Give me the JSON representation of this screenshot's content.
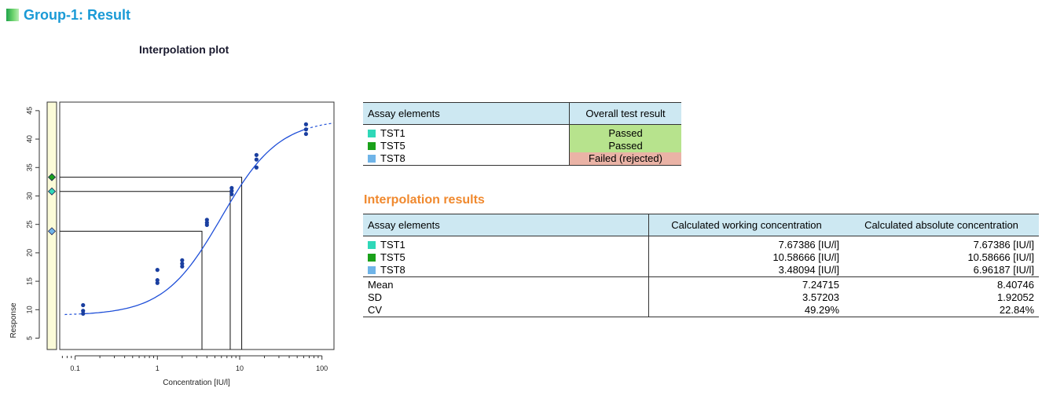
{
  "header": {
    "title": "Group-1: Result"
  },
  "plot_title": "Interpolation plot",
  "colors": {
    "TST1": "#2fd8b8",
    "TST5": "#1aa11a",
    "TST8": "#6fb4e8",
    "curve": "#1f4fd8",
    "points": "#1a3fa0"
  },
  "chart_data": {
    "type": "scatter",
    "xlabel": "Concentration [IU/l]",
    "ylabel": "Response",
    "x_scale": "log",
    "xlim": [
      0.065,
      140
    ],
    "ylim": [
      3,
      46.5
    ],
    "x_ticks": [
      "0.1",
      "1",
      "10",
      "100"
    ],
    "y_ticks": [
      "5",
      "10",
      "15",
      "20",
      "25",
      "30",
      "35",
      "40",
      "45"
    ],
    "curve": {
      "type": "4PL",
      "bottom": 9.0,
      "top": 43.5,
      "ec50": 6.0,
      "hill": 1.24,
      "x_range": [
        0.12,
        64
      ],
      "extrapolated": true
    },
    "points": {
      "x": [
        0.125,
        0.125,
        0.125,
        1,
        1,
        1,
        2,
        2,
        2,
        4,
        4,
        4,
        8,
        8,
        8,
        16,
        16,
        16,
        64,
        64,
        64
      ],
      "y": [
        10.8,
        9.8,
        9.3,
        17.0,
        15.2,
        14.7,
        18.7,
        18.1,
        17.6,
        25.8,
        25.3,
        24.9,
        31.4,
        30.9,
        30.3,
        37.2,
        36.4,
        35.0,
        42.6,
        41.7,
        40.9
      ]
    },
    "interpolation_lines": [
      {
        "x": 7.67386,
        "y": 30.8
      },
      {
        "x": 10.58666,
        "y": 33.3
      },
      {
        "x": 3.48094,
        "y": 23.8
      }
    ],
    "sample_markers": [
      {
        "name": "TST5",
        "y": 33.3
      },
      {
        "name": "TST1",
        "y": 30.8
      },
      {
        "name": "TST8",
        "y": 23.8
      }
    ]
  },
  "assay_table": {
    "headers": [
      "Assay elements",
      "Overall test result"
    ],
    "rows": [
      {
        "name": "TST1",
        "result": "Passed",
        "status": "passed"
      },
      {
        "name": "TST5",
        "result": "Passed",
        "status": "passed"
      },
      {
        "name": "TST8",
        "result": "Failed (rejected)",
        "status": "failed"
      }
    ]
  },
  "interp_title": "Interpolation results",
  "interp_table": {
    "headers": [
      "Assay elements",
      "Calculated working concentration",
      "Calculated absolute concentration"
    ],
    "rows": [
      {
        "name": "TST1",
        "working": "7.67386 [IU/l]",
        "absolute": "7.67386 [IU/l]"
      },
      {
        "name": "TST5",
        "working": "10.58666 [IU/l]",
        "absolute": "10.58666 [IU/l]"
      },
      {
        "name": "TST8",
        "working": "3.48094 [IU/l]",
        "absolute": "6.96187 [IU/l]"
      }
    ],
    "stats": [
      {
        "name": "Mean",
        "working": "7.24715",
        "absolute": "8.40746"
      },
      {
        "name": "SD",
        "working": "3.57203",
        "absolute": "1.92052"
      },
      {
        "name": "CV",
        "working": "49.29%",
        "absolute": "22.84%"
      }
    ]
  }
}
